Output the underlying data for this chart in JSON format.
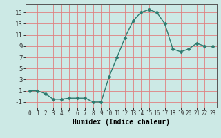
{
  "x": [
    0,
    1,
    2,
    3,
    4,
    5,
    6,
    7,
    8,
    9,
    10,
    11,
    12,
    13,
    14,
    15,
    16,
    17,
    18,
    19,
    20,
    21,
    22,
    23
  ],
  "y": [
    1,
    1,
    0.5,
    -0.5,
    -0.5,
    -0.3,
    -0.3,
    -0.3,
    -1,
    -1,
    3.5,
    7,
    10.5,
    13.5,
    15,
    15.5,
    15,
    13,
    8.5,
    8,
    8.5,
    9.5,
    9,
    9
  ],
  "line_color": "#2d7a6e",
  "marker": "D",
  "marker_size": 2.5,
  "bg_color": "#cce9e5",
  "grid_color": "#e08080",
  "xlabel": "Humidex (Indice chaleur)",
  "xlim": [
    -0.5,
    23.5
  ],
  "ylim": [
    -2,
    16.5
  ],
  "yticks": [
    -1,
    1,
    3,
    5,
    7,
    9,
    11,
    13,
    15
  ],
  "xticks": [
    0,
    1,
    2,
    3,
    4,
    5,
    6,
    7,
    8,
    9,
    10,
    11,
    12,
    13,
    14,
    15,
    16,
    17,
    18,
    19,
    20,
    21,
    22,
    23
  ]
}
